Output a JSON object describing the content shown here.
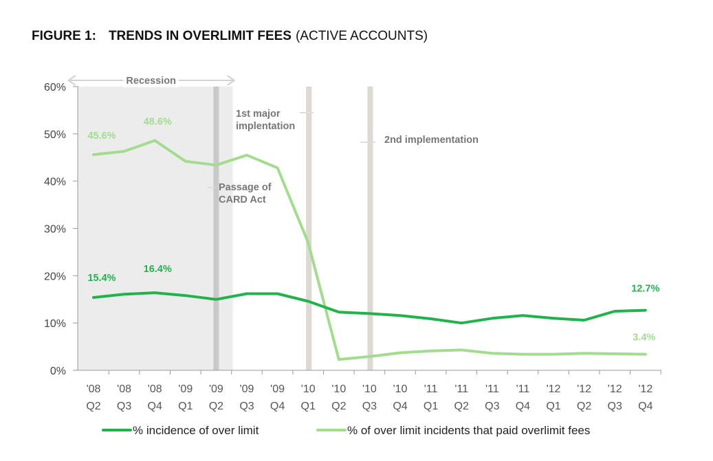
{
  "figure_label": "FIGURE 1:",
  "title_bold": "TRENDS IN OVERLIMIT FEES",
  "title_rest": "(ACTIVE ACCOUNTS)",
  "colors": {
    "series1": "#22b24c",
    "series2": "#a3dc8f",
    "recession_band": "#ececec",
    "event_line": "#ddd8d2",
    "card_act_line": "#c9c9c9"
  },
  "chart_data": {
    "type": "line",
    "title": "TRENDS IN OVERLIMIT FEES (ACTIVE ACCOUNTS)",
    "categories": [
      {
        "year": "'08",
        "q": "Q2"
      },
      {
        "year": "'08",
        "q": "Q3"
      },
      {
        "year": "'08",
        "q": "Q4"
      },
      {
        "year": "'09",
        "q": "Q1"
      },
      {
        "year": "'09",
        "q": "Q2"
      },
      {
        "year": "'09",
        "q": "Q3"
      },
      {
        "year": "'09",
        "q": "Q4"
      },
      {
        "year": "'10",
        "q": "Q1"
      },
      {
        "year": "'10",
        "q": "Q2"
      },
      {
        "year": "'10",
        "q": "Q3"
      },
      {
        "year": "'10",
        "q": "Q4"
      },
      {
        "year": "'11",
        "q": "Q1"
      },
      {
        "year": "'11",
        "q": "Q2"
      },
      {
        "year": "'11",
        "q": "Q3"
      },
      {
        "year": "'11",
        "q": "Q4"
      },
      {
        "year": "'12",
        "q": "Q1"
      },
      {
        "year": "'12",
        "q": "Q2"
      },
      {
        "year": "'12",
        "q": "Q3"
      },
      {
        "year": "'12",
        "q": "Q4"
      }
    ],
    "ylim": [
      0,
      60
    ],
    "yticks": [
      0,
      10,
      20,
      30,
      40,
      50,
      60
    ],
    "ytick_labels": [
      "0%",
      "10%",
      "20%",
      "30%",
      "40%",
      "50%",
      "60%"
    ],
    "series": [
      {
        "name": "% incidence of over limit",
        "values": [
          15.4,
          16.1,
          16.4,
          15.8,
          15.0,
          16.2,
          16.2,
          14.6,
          12.3,
          12.0,
          11.6,
          10.9,
          10.0,
          11.0,
          11.6,
          11.0,
          10.6,
          12.5,
          12.7
        ],
        "labels": [
          {
            "index": 0,
            "text": "15.4%"
          },
          {
            "index": 2,
            "text": "16.4%"
          },
          {
            "index": 18,
            "text": "12.7%"
          }
        ]
      },
      {
        "name": "% of over limit incidents that paid overlimit fees",
        "values": [
          45.6,
          46.3,
          48.6,
          44.2,
          43.4,
          45.5,
          42.8,
          27.0,
          2.3,
          2.9,
          3.7,
          4.1,
          4.3,
          3.6,
          3.4,
          3.4,
          3.6,
          3.5,
          3.4
        ],
        "labels": [
          {
            "index": 0,
            "text": "45.6%"
          },
          {
            "index": 2,
            "text": "48.6%"
          },
          {
            "index": 18,
            "text": "3.4%"
          }
        ]
      }
    ],
    "recession": {
      "label": "Recession",
      "start_index": -0.5,
      "end_index": 4.5
    },
    "events": [
      {
        "index": 4,
        "label_lines": [
          "Passage of",
          "CARD Act"
        ]
      },
      {
        "index": 7,
        "label_lines": [
          "1st major",
          "implentation"
        ]
      },
      {
        "index": 9,
        "label_lines": [
          "2nd implementation"
        ]
      }
    ],
    "legend_position": "bottom",
    "grid": false
  }
}
